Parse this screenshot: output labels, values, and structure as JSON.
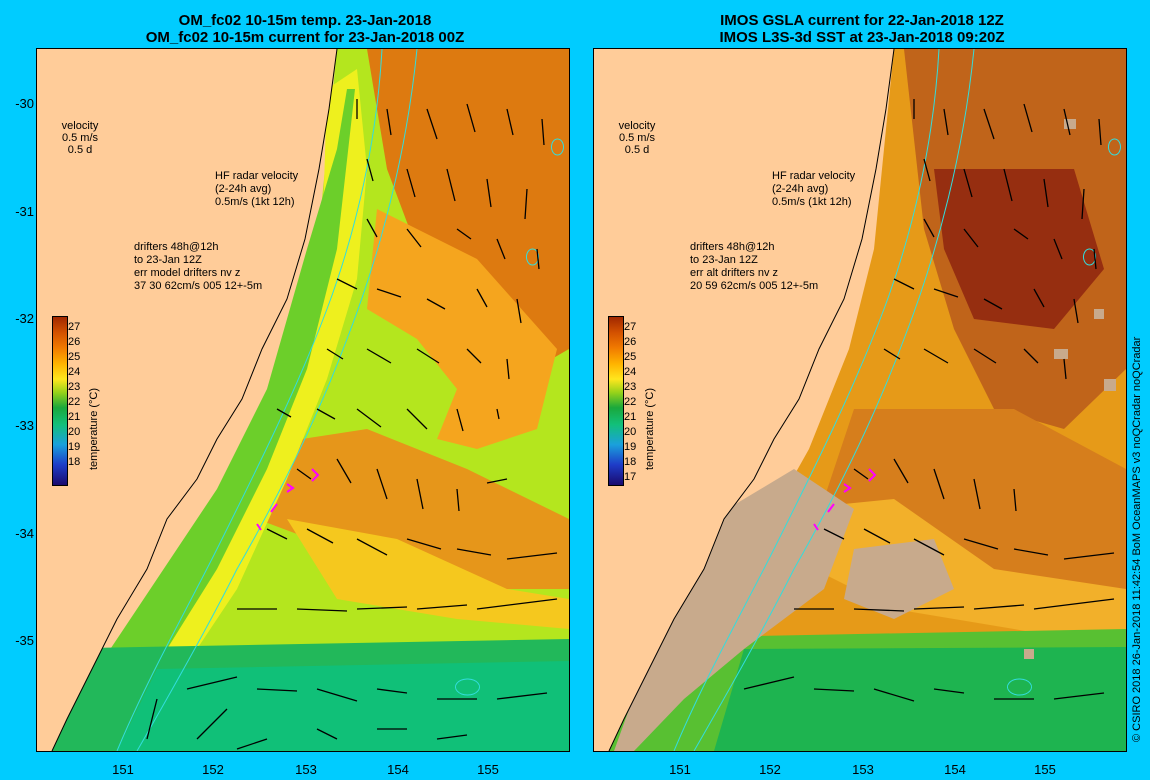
{
  "left": {
    "title1": "OM_fc02 10-15m temp. 23-Jan-2018",
    "title2": "OM_fc02 10-15m current for 23-Jan-2018 00Z",
    "drifter_lines": [
      "drifters 48h@12h",
      "to 23-Jan 12Z",
      "err model drifters nv z",
      "37 30 62cm/s 005 12+-5m"
    ]
  },
  "right": {
    "title1": "IMOS GSLA current for 22-Jan-2018 12Z",
    "title2": "IMOS L3S-3d SST at 23-Jan-2018 09:20Z",
    "drifter_lines": [
      "drifters 48h@12h",
      "to 23-Jan 12Z",
      "err alt drifters nv z",
      "20 59 62cm/s 005 12+-5m"
    ]
  },
  "velocity": {
    "label": "velocity",
    "speed": "0.5 m/s",
    "duration": "0.5 d"
  },
  "hf_radar": {
    "line1": "HF radar velocity",
    "line2": "(2-24h avg)",
    "line3": "0.5m/s (1kt 12h)"
  },
  "x_ticks": [
    "151",
    "152",
    "153",
    "154",
    "155"
  ],
  "y_ticks": [
    "-30",
    "-31",
    "-32",
    "-33",
    "-34",
    "-35"
  ],
  "colorbar": {
    "unit": "temperature (°C)",
    "left_labels": [
      "27",
      "26",
      "25",
      "24",
      "23",
      "22",
      "21",
      "20",
      "19",
      "18"
    ],
    "right_labels": [
      "27",
      "26",
      "25",
      "24",
      "23",
      "22",
      "21",
      "20",
      "19",
      "18",
      "17"
    ]
  },
  "credit": "© CSIRO 2018   26-Jan-2018 11:42:54 BoM OceanMAPS v3 noQCradar noQCradar",
  "colors": {
    "background": "#00ccff",
    "land": "#ffcc99",
    "no_data": "#c8aa8c",
    "contour": "#33dddd",
    "drifter": "#ff00ff"
  }
}
